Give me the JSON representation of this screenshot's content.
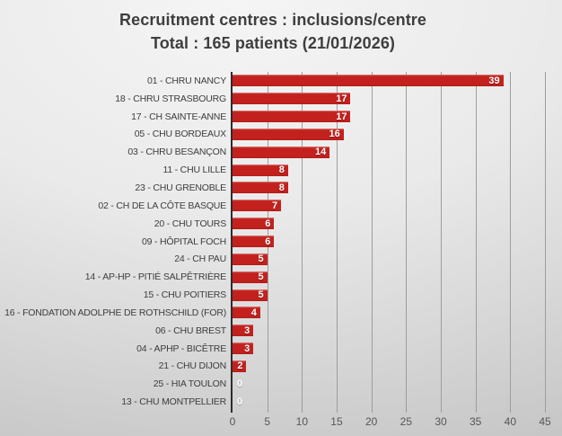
{
  "title": {
    "line1": "Recruitment centres : inclusions/centre",
    "line2": "Total : 165 patients (21/01/2026)"
  },
  "chart_data": {
    "type": "bar",
    "orientation": "horizontal",
    "title": "Recruitment centres : inclusions/centre — Total : 165 patients (21/01/2026)",
    "categories": [
      "01 - CHRU NANCY",
      "18 - CHRU STRASBOURG",
      "17 - CH SAINTE-ANNE",
      "05 - CHU BORDEAUX",
      "03 - CHRU BESANÇON",
      "11 - CHU LILLE",
      "23 - CHU GRENOBLE",
      "02 - CH DE LA CÔTE BASQUE",
      "20 - CHU TOURS",
      "09 - HÔPITAL FOCH",
      "24 - CH PAU",
      "14 - AP-HP - PITIÉ SALPÊTRIÈRE",
      "15 - CHU POITIERS",
      "16 - FONDATION ADOLPHE DE ROTHSCHILD (FOR)",
      "06 - CHU BREST",
      "04 - APHP - BICÊTRE",
      "21 - CHU DIJON",
      "25 - HIA TOULON",
      "13 - CHU MONTPELLIER"
    ],
    "values": [
      39,
      17,
      17,
      16,
      14,
      8,
      8,
      7,
      6,
      6,
      5,
      5,
      5,
      4,
      3,
      3,
      2,
      0,
      0
    ],
    "total_patients": 165,
    "date": "21/01/2026",
    "xlabel": "",
    "ylabel": "",
    "xlim": [
      0,
      45
    ],
    "x_ticks": [
      0,
      5,
      10,
      15,
      20,
      25,
      30,
      35,
      40,
      45
    ],
    "grid": true,
    "legend": false,
    "bar_color": "#c2211e",
    "data_label_color": "#ffffff",
    "axis_color": "#2d2d2d",
    "gridline_color": "#9d9d9d",
    "text_color": "#3d3d3d",
    "tick_label_color": "#565656"
  }
}
